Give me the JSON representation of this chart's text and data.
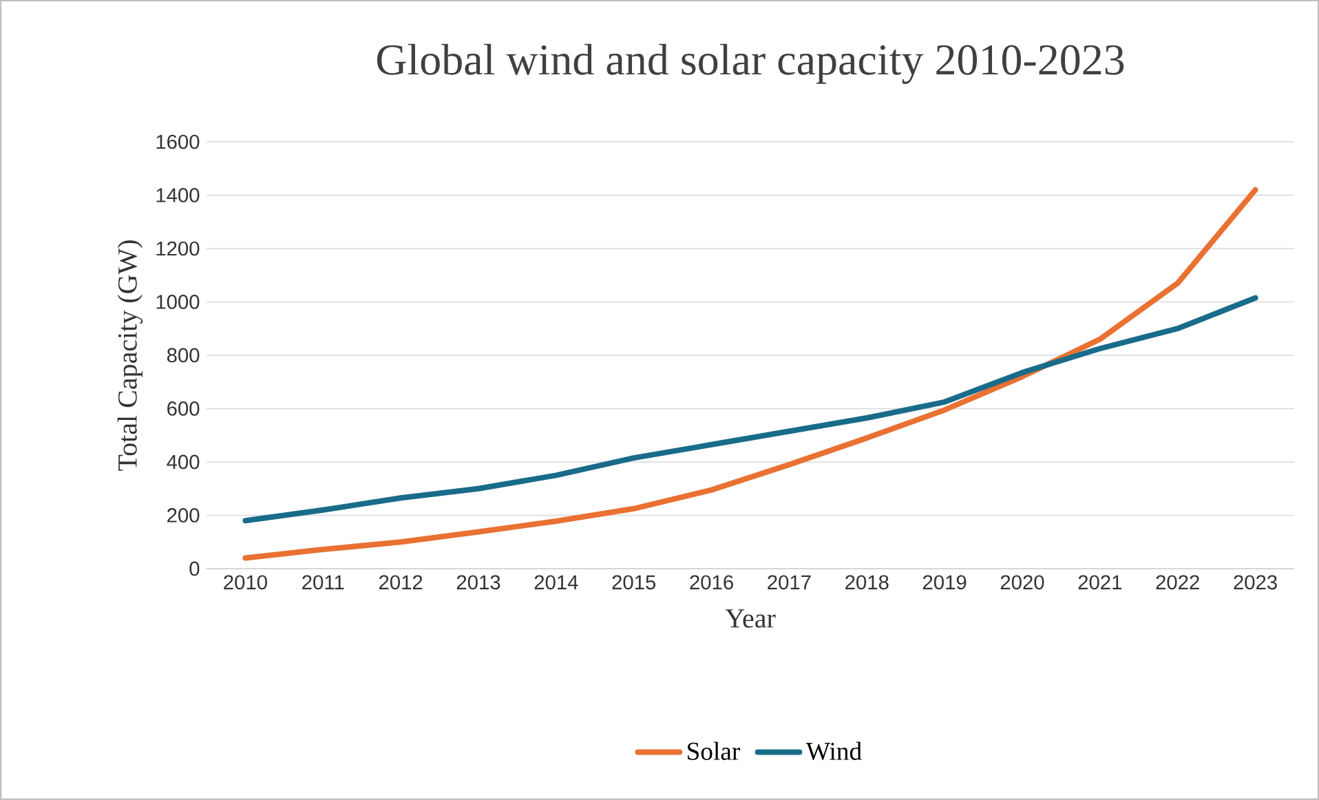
{
  "chart_data": {
    "type": "line",
    "title": "Global wind and solar capacity 2010-2023",
    "xlabel": "Year",
    "ylabel": "Total Capacity (GW)",
    "categories": [
      "2010",
      "2011",
      "2012",
      "2013",
      "2014",
      "2015",
      "2016",
      "2017",
      "2018",
      "2019",
      "2020",
      "2021",
      "2022",
      "2023"
    ],
    "series": [
      {
        "name": "Solar",
        "color": "#e97132",
        "values": [
          40,
          72,
          100,
          138,
          178,
          225,
          295,
          390,
          490,
          595,
          720,
          860,
          1070,
          1420
        ]
      },
      {
        "name": "Wind",
        "color": "#196b8a",
        "values": [
          180,
          220,
          265,
          300,
          350,
          415,
          465,
          515,
          565,
          625,
          735,
          825,
          900,
          1015
        ]
      }
    ],
    "ylim": [
      0,
      1600
    ],
    "yticks": [
      0,
      200,
      400,
      600,
      800,
      1000,
      1200,
      1400,
      1600
    ],
    "grid": "y",
    "legend": "bottom",
    "marker": "none",
    "line_style": "solid"
  }
}
